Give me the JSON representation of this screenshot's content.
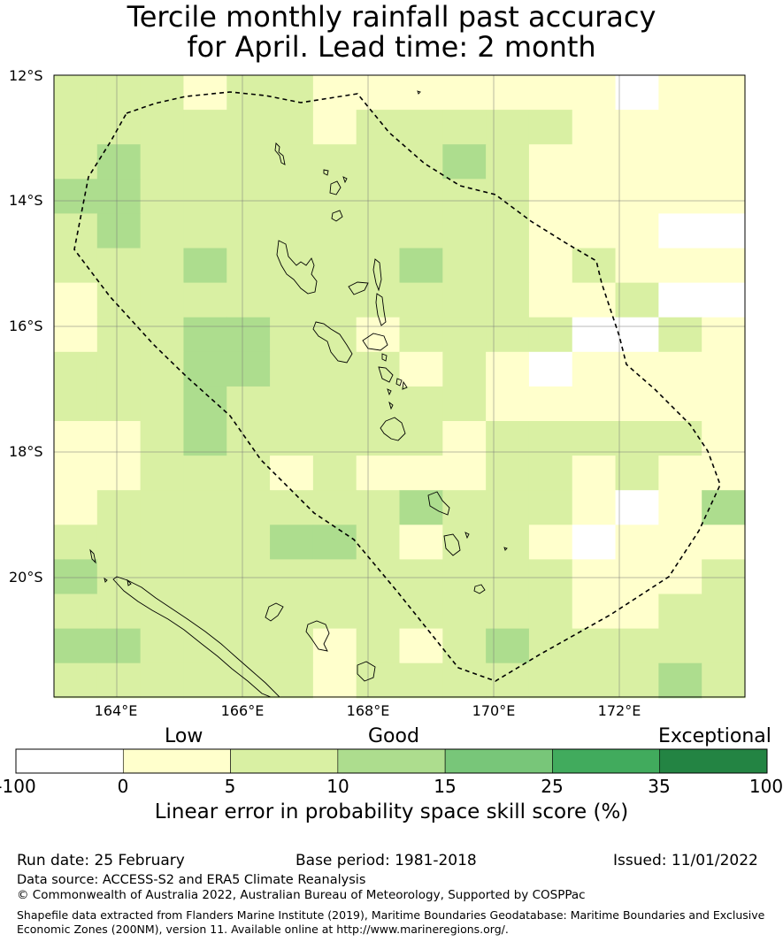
{
  "title": {
    "line1": "Tercile monthly rainfall past accuracy",
    "line2": "for April. Lead time: 2 month"
  },
  "map": {
    "lat_labels": [
      "12°S",
      "14°S",
      "16°S",
      "18°S",
      "20°S"
    ],
    "lon_labels": [
      "164°E",
      "166°E",
      "168°E",
      "170°E",
      "172°E"
    ],
    "region": "Vanuatu EEZ",
    "boundary_style": "dashed",
    "colors": {
      "lt0": "#ffffff",
      "c0_5": "#ffffcc",
      "c5_10": "#d9f0a3",
      "c10_15": "#addd8e",
      "c15_25": "#78c679",
      "c25_35": "#41ab5d",
      "c35_100": "#238443"
    }
  },
  "colorbar": {
    "category_labels": [
      "Low",
      "Good",
      "Exceptional"
    ],
    "ticks": [
      "-100",
      "0",
      "5",
      "10",
      "15",
      "25",
      "35",
      "100"
    ],
    "colors": [
      "#ffffff",
      "#ffffcc",
      "#d9f0a3",
      "#addd8e",
      "#78c679",
      "#41ab5d",
      "#238443"
    ],
    "label": "Linear error in probability space skill score (%)"
  },
  "footer": {
    "run_date": "Run date: 25 February",
    "base_period": "Base period: 1981-2018",
    "issued": "Issued: 11/01/2022",
    "data_source": "Data source: ACCESS-S2 and ERA5 Climate Reanalysis",
    "copyright": "© Commonwealth of Australia 2022, Australian Bureau of Meteorology, Supported by COSPPac",
    "shapefile_line1": "Shapefile data extracted from Flanders Marine Institute (2019), Maritime Boundaries Geodatabase: Maritime Boundaries and Exclusive",
    "shapefile_line2": "Economic Zones (200NM), version 11. Available online at http://www.marineregions.org/."
  }
}
